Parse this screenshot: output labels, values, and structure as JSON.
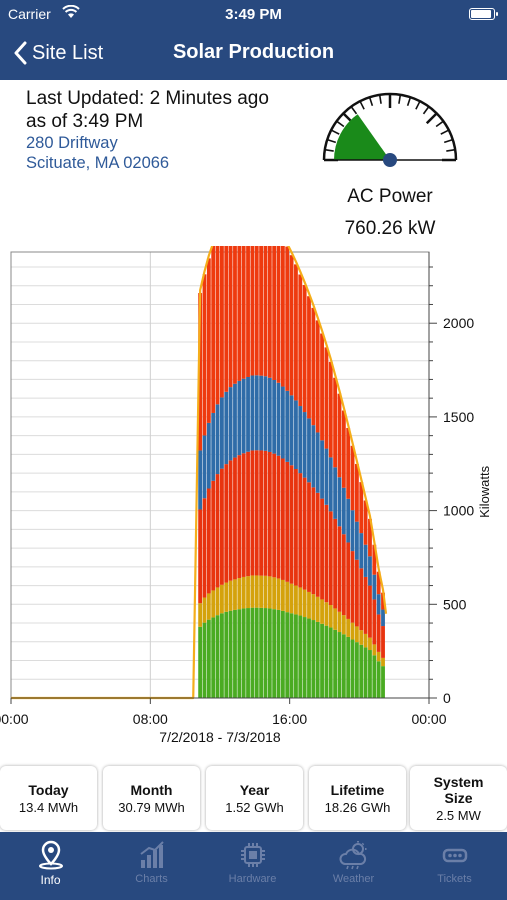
{
  "status_bar": {
    "carrier": "Carrier",
    "time": "3:49 PM"
  },
  "nav": {
    "back_label": "Site List",
    "title": "Solar Production"
  },
  "info": {
    "last_updated": "Last Updated: 2 Minutes ago",
    "as_of": "as of 3:49 PM",
    "address_line1": "280 Driftway",
    "address_line2": "Scituate, MA 02066"
  },
  "gauge": {
    "label": "AC Power",
    "value": "760.26 kW",
    "level_fraction": 0.304,
    "fill_color": "#1a8a1a",
    "needle_color": "#28497f"
  },
  "chart_data": {
    "type": "bar",
    "stacked": true,
    "xlabel": "7/2/2018 - 7/3/2018",
    "ylabel": "Kilowatts",
    "x_ticks": [
      "00:00",
      "08:00",
      "16:00",
      "00:00"
    ],
    "y_ticks": [
      "0",
      "500",
      "1000",
      "1500",
      "2000"
    ],
    "xlim_hours": [
      0,
      24
    ],
    "ylim": [
      0,
      2380
    ],
    "grid": true,
    "y_axis_position": "right",
    "colors": [
      "#4aab22",
      "#d4a20c",
      "#e8340f",
      "#2f6ca8",
      "#ee3a0f"
    ],
    "line_color": "#f5ae1b",
    "bar_start_hour": 10.75,
    "bar_step_hours": 0.25,
    "series": [
      {
        "values": [
          380,
          402,
          418,
          430,
          442,
          452,
          460,
          466,
          470,
          474,
          478,
          480,
          482,
          482,
          481,
          480,
          478,
          474,
          470,
          465,
          458,
          452,
          446,
          440,
          432,
          424,
          416,
          406,
          396,
          386,
          376,
          364,
          352,
          340,
          326,
          312,
          298,
          284,
          270,
          256,
          228,
          196,
          170
        ]
      },
      {
        "values": [
          126,
          134,
          140,
          144,
          148,
          152,
          156,
          160,
          163,
          166,
          168,
          170,
          172,
          172,
          172,
          172,
          171,
          170,
          168,
          165,
          162,
          158,
          154,
          150,
          146,
          142,
          138,
          134,
          130,
          125,
          120,
          114,
          108,
          102,
          96,
          90,
          84,
          78,
          72,
          66,
          58,
          50,
          44
        ]
      },
      {
        "values": [
          500,
          530,
          560,
          585,
          605,
          620,
          632,
          642,
          650,
          656,
          660,
          664,
          667,
          668,
          668,
          667,
          664,
          660,
          655,
          648,
          640,
          632,
          622,
          610,
          598,
          585,
          570,
          555,
          538,
          520,
          500,
          478,
          456,
          432,
          408,
          382,
          356,
          330,
          304,
          278,
          240,
          200,
          170
        ]
      },
      {
        "values": [
          315,
          335,
          350,
          362,
          372,
          380,
          386,
          391,
          394,
          396,
          398,
          399,
          400,
          400,
          399,
          398,
          396,
          393,
          389,
          384,
          379,
          373,
          366,
          358,
          350,
          341,
          332,
          322,
          311,
          300,
          288,
          275,
          262,
          248,
          233,
          218,
          203,
          188,
          172,
          156,
          132,
          108,
          88
        ]
      },
      {
        "values": [
          840,
          860,
          878,
          892,
          904,
          910,
          914,
          916,
          916,
          914,
          910,
          904,
          896,
          886,
          874,
          860,
          844,
          828,
          810,
          790,
          770,
          748,
          726,
          702,
          678,
          652,
          626,
          598,
          570,
          540,
          510,
          478,
          446,
          412,
          378,
          344,
          308,
          272,
          236,
          200,
          160,
          120,
          90
        ]
      }
    ]
  },
  "cards": [
    {
      "title": "Today",
      "value": "13.4 MWh"
    },
    {
      "title": "Month",
      "value": "30.79 MWh"
    },
    {
      "title": "Year",
      "value": "1.52 GWh"
    },
    {
      "title": "Lifetime",
      "value": "18.26 GWh"
    },
    {
      "title_line1": "System",
      "title_line2": "Size",
      "value": "2.5 MW"
    }
  ],
  "tabs": [
    {
      "label": "Info",
      "icon": "location-pin-icon",
      "active": true
    },
    {
      "label": "Charts",
      "icon": "bar-chart-icon",
      "active": false
    },
    {
      "label": "Hardware",
      "icon": "chip-icon",
      "active": false
    },
    {
      "label": "Weather",
      "icon": "weather-cloud-icon",
      "active": false
    },
    {
      "label": "Tickets",
      "icon": "ticket-icon",
      "active": false
    }
  ]
}
